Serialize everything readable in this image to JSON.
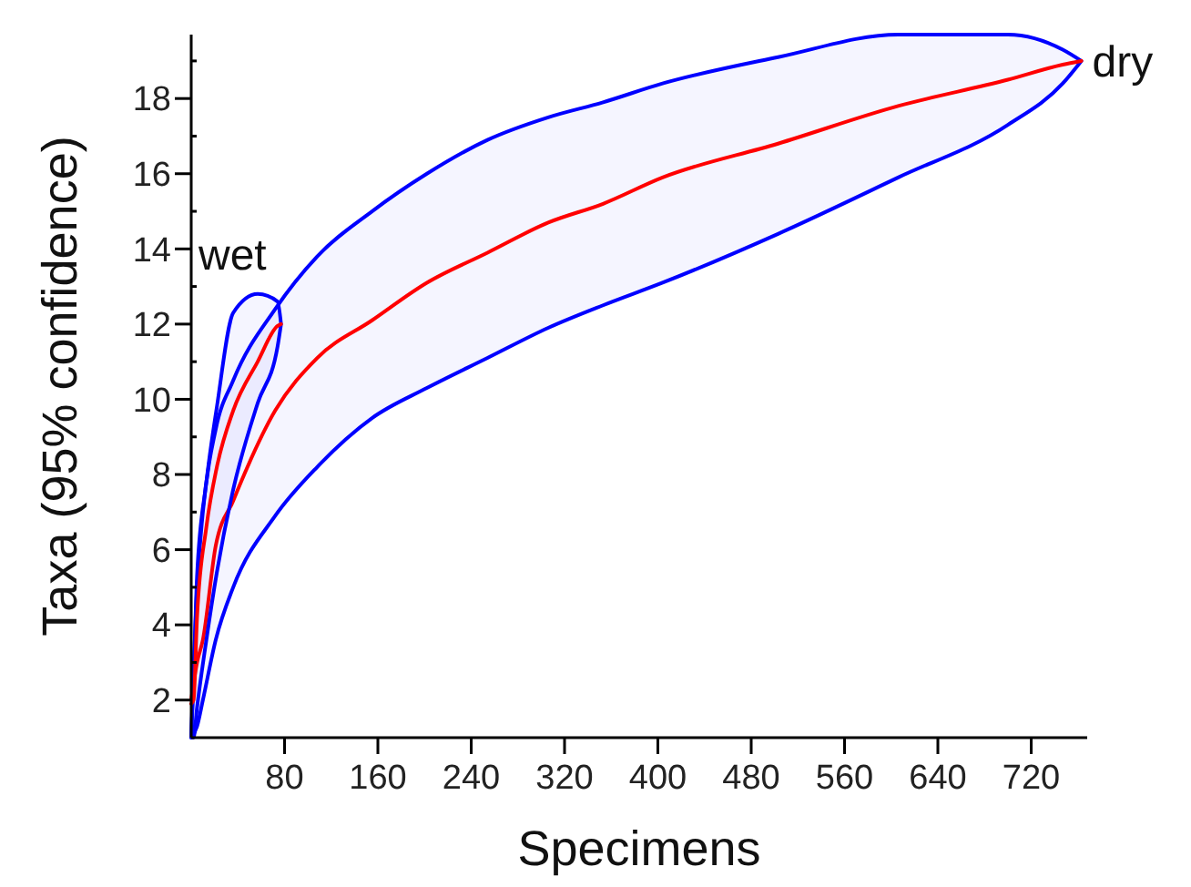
{
  "chart_data": {
    "type": "line",
    "xlabel": "Specimens",
    "ylabel": "Taxa (95% confidence)",
    "xlim": [
      0,
      768
    ],
    "ylim": [
      1,
      19.7
    ],
    "xticks": [
      80,
      160,
      240,
      320,
      400,
      480,
      560,
      640,
      720
    ],
    "yticks": [
      2,
      {
        "value": 3,
        "label": null
      },
      4,
      {
        "value": 5,
        "label": null
      },
      6,
      {
        "value": 7,
        "label": null
      },
      8,
      {
        "value": 9,
        "label": null
      },
      10,
      {
        "value": 11,
        "label": null
      },
      12,
      {
        "value": 13,
        "label": null
      },
      14,
      {
        "value": 15,
        "label": null
      },
      16,
      {
        "value": 17,
        "label": null
      },
      18,
      {
        "value": 19,
        "label": null
      }
    ],
    "grid": false,
    "marker": "none",
    "line_style": "solid",
    "series": [
      {
        "color": "#ff0000",
        "x": [
          0,
          5,
          10,
          21,
          36,
          72,
          108,
          155,
          202,
          254,
          306,
          353,
          404,
          503,
          606,
          700,
          747,
          763
        ],
        "values": [
          2,
          3.0,
          3.6,
          6.1,
          7.3,
          9.7,
          11.1,
          12.1,
          13.1,
          13.9,
          14.7,
          15.2,
          15.9,
          16.8,
          17.8,
          18.5,
          18.9,
          19.0
        ],
        "upper": [
          1,
          5,
          7,
          9.2,
          10.5,
          12.4,
          13.8,
          15.0,
          16.0,
          16.9,
          17.5,
          17.9,
          18.4,
          19.1,
          19.7,
          19.7,
          19.3,
          19.0
        ],
        "lower": [
          1,
          1.3,
          2.0,
          3.6,
          5.0,
          6.9,
          8.2,
          9.5,
          10.3,
          11.1,
          11.9,
          12.5,
          13.1,
          14.4,
          15.9,
          17.3,
          18.4,
          19.0
        ]
      },
      {
        "color": "#ff0000",
        "x": [
          0,
          2,
          5,
          13,
          22,
          36,
          57,
          74,
          77
        ],
        "values": [
          1.9,
          2.0,
          4.2,
          6.6,
          8.2,
          9.7,
          11.0,
          11.95,
          12.0
        ],
        "upper": [
          1,
          2.5,
          5.3,
          7.8,
          9.8,
          12.3,
          12.8,
          12.6,
          12.0
        ],
        "lower": [
          1,
          1,
          1.8,
          3.6,
          5.4,
          7.6,
          9.9,
          11.4,
          12.0
        ]
      }
    ],
    "annotations": [
      "dry",
      "wet"
    ]
  }
}
